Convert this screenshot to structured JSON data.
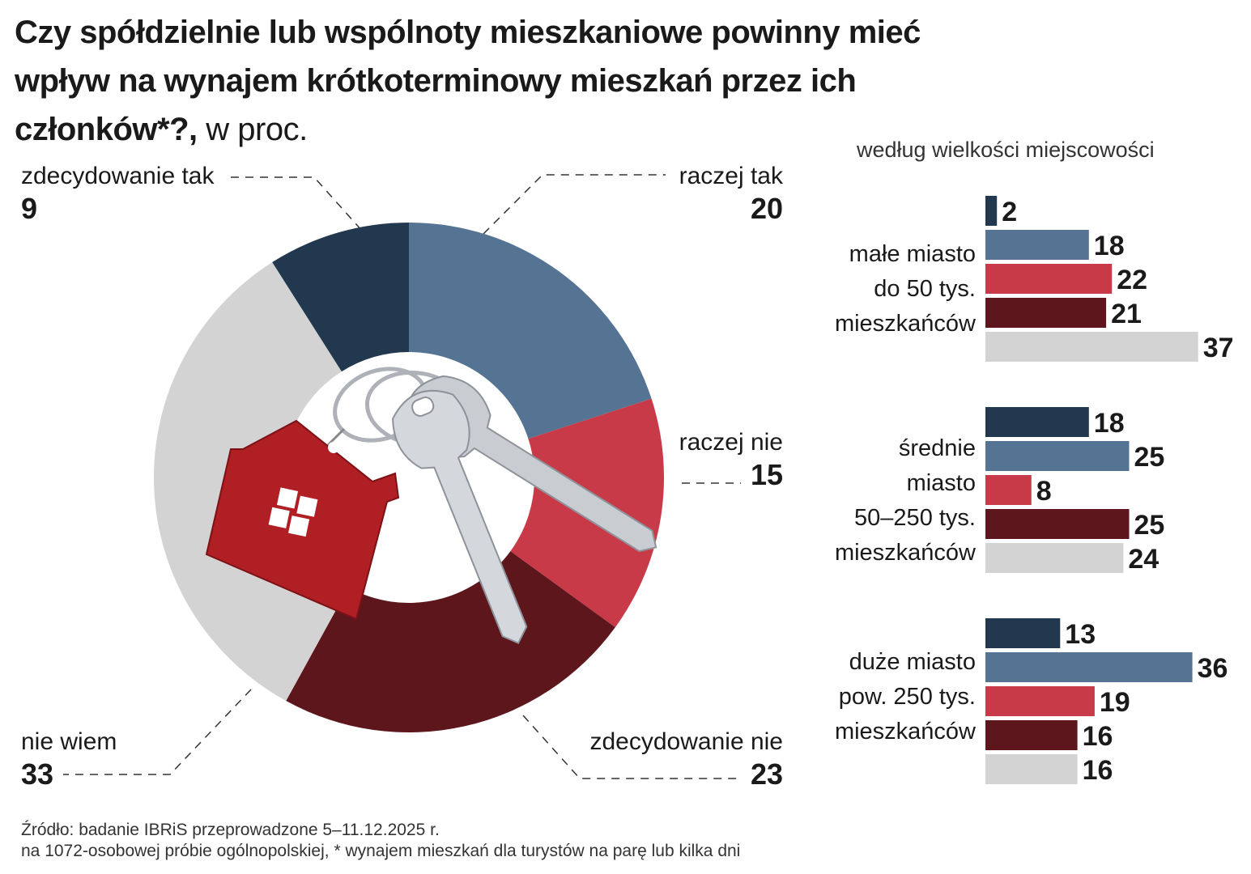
{
  "header": {
    "title_bold": "Czy spółdzielnie lub wspólnoty mieszkaniowe powinny mieć wpływ na wynajem krótkoterminowy mieszkań przez ich członków*?,",
    "title_unit": "w proc.",
    "subtitle": "według wielkości miejscowości"
  },
  "source": {
    "line1": "Źródło: badanie IBRiS przeprowadzone  5–11.12.2025 r.",
    "line2": "na 1072-osobowej próbie ogólnopolskiej, * wynajem mieszkań dla turystów na parę lub kilka dni"
  },
  "colors": {
    "zdecydowanie_tak": "#22384f",
    "raczej_tak": "#557494",
    "raczej_nie": "#c93a48",
    "zdecydowanie_nie": "#5c161c",
    "nie_wiem": "#d3d3d3",
    "house": "#b01f24",
    "key": "#c8cbd0"
  },
  "pie_labels": {
    "zdecydowanie_tak": {
      "label": "zdecydowanie tak",
      "value": "9"
    },
    "raczej_tak": {
      "label": "raczej tak",
      "value": "20"
    },
    "raczej_nie": {
      "label": "raczej nie",
      "value": "15"
    },
    "zdecydowanie_nie": {
      "label": "zdecydowanie nie",
      "value": "23"
    },
    "nie_wiem": {
      "label": "nie wiem",
      "value": "33"
    }
  },
  "groups": [
    {
      "label_lines": [
        "małe miasto",
        "do 50 tys.",
        "mieszkańców"
      ]
    },
    {
      "label_lines": [
        "średnie",
        "miasto",
        "50–250 tys.",
        "mieszkańców"
      ]
    },
    {
      "label_lines": [
        "duże miasto",
        "pow.  250 tys.",
        "mieszkańców"
      ]
    }
  ],
  "chart_data": [
    {
      "type": "pie",
      "categories": [
        "raczej tak",
        "raczej nie",
        "zdecydowanie nie",
        "nie wiem",
        "zdecydowanie tak"
      ],
      "values": [
        20,
        15,
        23,
        33,
        9
      ],
      "unit": "w proc."
    },
    {
      "type": "bar",
      "orientation": "horizontal",
      "title": "według wielkości miejscowości",
      "categories": [
        "małe miasto do 50 tys. mieszkańców",
        "średnie miasto 50–250 tys. mieszkańców",
        "duże miasto pow.  250 tys. mieszkańców"
      ],
      "series": [
        {
          "name": "zdecydowanie tak",
          "values": [
            2,
            18,
            13
          ]
        },
        {
          "name": "raczej tak",
          "values": [
            18,
            25,
            36
          ]
        },
        {
          "name": "raczej nie",
          "values": [
            22,
            8,
            19
          ]
        },
        {
          "name": "zdecydowanie nie",
          "values": [
            21,
            25,
            16
          ]
        },
        {
          "name": "nie wiem",
          "values": [
            37,
            24,
            16
          ]
        }
      ]
    }
  ]
}
